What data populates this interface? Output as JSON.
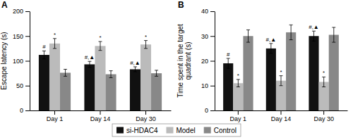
{
  "chart_data": [
    {
      "type": "bar",
      "title": "A",
      "y_label": "Escape latency (s)",
      "categories": [
        "Day 1",
        "Day 14",
        "Day 30"
      ],
      "series": [
        {
          "name": "si-HDAC4",
          "color": "#111111",
          "values": [
            112,
            93,
            83
          ],
          "errors": [
            8,
            6,
            5
          ],
          "annotations": [
            "#",
            "#,▲",
            "#,▲"
          ]
        },
        {
          "name": "Model",
          "color": "#bbbbbb",
          "values": [
            135,
            130,
            133
          ],
          "errors": [
            10,
            9,
            8
          ],
          "annotations": [
            "*",
            "*",
            "*"
          ]
        },
        {
          "name": "Control",
          "color": "#888888",
          "values": [
            76,
            73,
            75
          ],
          "errors": [
            7,
            7,
            6
          ]
        }
      ],
      "ylim": [
        0,
        200
      ],
      "yticks": [
        0,
        50,
        100,
        150,
        200
      ],
      "grid": false,
      "legend": "bottom"
    },
    {
      "type": "bar",
      "title": "B",
      "y_label": "Time spent in the target\nquadrant (s)",
      "categories": [
        "Day 1",
        "Day 14",
        "Day 30"
      ],
      "series": [
        {
          "name": "si-HDAC4",
          "color": "#111111",
          "values": [
            19,
            25,
            30
          ],
          "errors": [
            2,
            2,
            2
          ],
          "annotations": [
            "#",
            "#,▲",
            "#,▲"
          ]
        },
        {
          "name": "Model",
          "color": "#bbbbbb",
          "values": [
            11,
            12,
            11.5
          ],
          "errors": [
            1.5,
            2,
            2
          ],
          "annotations": [
            "*",
            "*",
            "*"
          ]
        },
        {
          "name": "Control",
          "color": "#888888",
          "values": [
            30,
            31.5,
            30.5
          ],
          "errors": [
            2.5,
            3,
            3
          ]
        }
      ],
      "ylim": [
        0,
        40
      ],
      "yticks": [
        0,
        10,
        20,
        30,
        40
      ],
      "grid": false
    }
  ]
}
